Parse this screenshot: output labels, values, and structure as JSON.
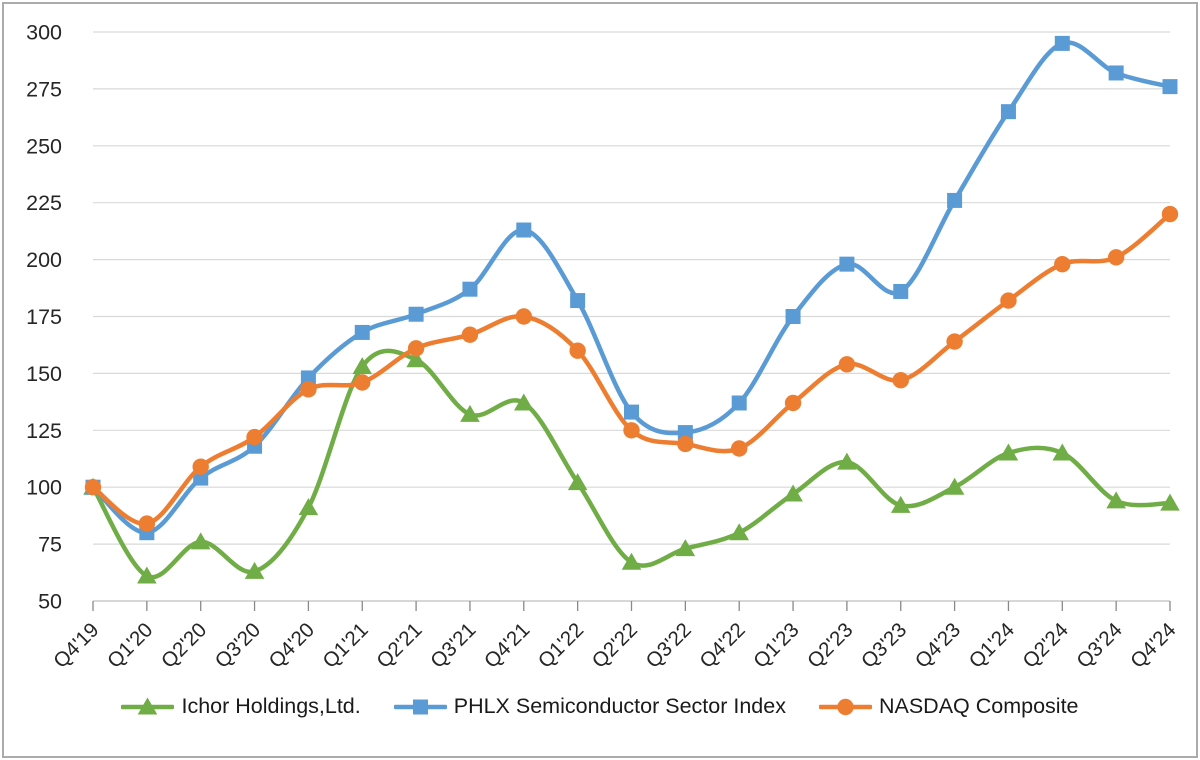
{
  "chart_data": {
    "type": "line",
    "title": "",
    "categories": [
      "Q4'19",
      "Q1'20",
      "Q2'20",
      "Q3'20",
      "Q4'20",
      "Q1'21",
      "Q2'21",
      "Q3'21",
      "Q4'21",
      "Q1'22",
      "Q2'22",
      "Q3'22",
      "Q4'22",
      "Q1'23",
      "Q2'23",
      "Q3'23",
      "Q4'23",
      "Q1'24",
      "Q2'24",
      "Q3'24",
      "Q4'24"
    ],
    "series": [
      {
        "name": "Ichor Holdings,Ltd.",
        "marker": "triangle",
        "color": "#70AD47",
        "values": [
          100,
          61,
          76,
          63,
          91,
          153,
          156,
          132,
          137,
          102,
          67,
          73,
          80,
          97,
          111,
          92,
          100,
          115,
          115,
          94,
          93
        ]
      },
      {
        "name": "PHLX Semiconductor Sector Index",
        "marker": "square",
        "color": "#5B9BD5",
        "values": [
          100,
          80,
          104,
          118,
          148,
          168,
          176,
          187,
          213,
          182,
          133,
          124,
          137,
          175,
          198,
          186,
          226,
          265,
          295,
          282,
          276
        ]
      },
      {
        "name": "NASDAQ Composite",
        "marker": "circle",
        "color": "#ED7D31",
        "values": [
          100,
          84,
          109,
          122,
          143,
          146,
          161,
          167,
          175,
          160,
          125,
          119,
          117,
          137,
          154,
          147,
          164,
          182,
          198,
          201,
          220
        ]
      }
    ],
    "y_axis": {
      "min": 50,
      "max": 300,
      "step": 25,
      "tick_labels": [
        "300",
        "275",
        "250",
        "225",
        "200",
        "175",
        "150",
        "125",
        "100",
        "75",
        "50"
      ]
    },
    "x_axis": {
      "label_rotation_deg": -45
    },
    "grid": true,
    "smooth_lines": true,
    "legend_position": "bottom",
    "colors": {
      "grid": "#D9D9D9",
      "axis": "#BFBFBF",
      "tick": "#898989",
      "text": "#262626",
      "frame_border": "#ABABAB",
      "background": "#FFFFFF"
    }
  }
}
